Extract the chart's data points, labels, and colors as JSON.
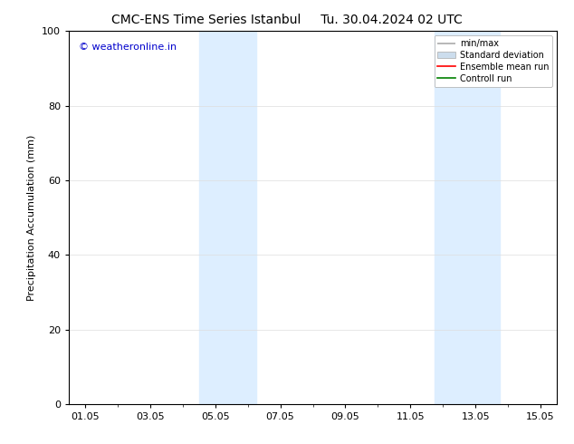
{
  "title_left": "CMC-ENS Time Series Istanbul",
  "title_right": "Tu. 30.04.2024 02 UTC",
  "ylabel": "Precipitation Accumulation (mm)",
  "ylim": [
    0,
    100
  ],
  "yticks": [
    0,
    20,
    40,
    60,
    80,
    100
  ],
  "xlim": [
    -0.5,
    14.5
  ],
  "xtick_labels": [
    "01.05",
    "03.05",
    "05.05",
    "07.05",
    "09.05",
    "11.05",
    "13.05",
    "15.05"
  ],
  "xtick_positions": [
    0,
    2,
    4,
    6,
    8,
    10,
    12,
    14
  ],
  "shaded_regions": [
    {
      "x_start": 3.5,
      "x_end": 5.25,
      "color": "#ddeeff"
    },
    {
      "x_start": 10.75,
      "x_end": 12.75,
      "color": "#ddeeff"
    }
  ],
  "watermark_text": "© weatheronline.in",
  "watermark_color": "#0000cc",
  "watermark_fontsize": 8,
  "legend_labels": [
    "min/max",
    "Standard deviation",
    "Ensemble mean run",
    "Controll run"
  ],
  "legend_line_colors": [
    "#aaaaaa",
    "#bbccdd",
    "#ff0000",
    "#008000"
  ],
  "bg_color": "#ffffff",
  "plot_bg_color": "#ffffff",
  "title_fontsize": 10,
  "axis_fontsize": 8,
  "tick_fontsize": 8,
  "legend_fontsize": 7
}
